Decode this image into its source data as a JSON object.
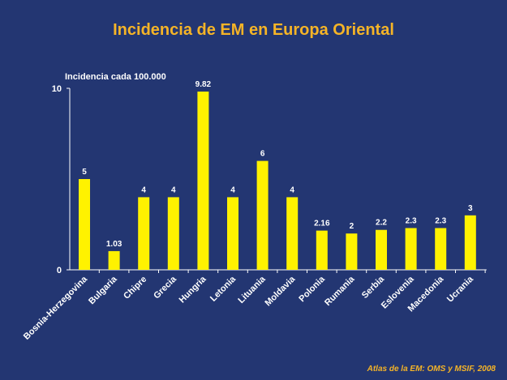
{
  "chart_data": {
    "type": "bar",
    "title": "Incidencia de EM en Europa Oriental",
    "ylabel": "Incidencia cada 100.000",
    "ylim": [
      0,
      10
    ],
    "yticks": [
      0,
      10
    ],
    "grid": false,
    "bar_color": "#FFF200",
    "categories": [
      "Bosnia-Herzegovina",
      "Bulgaria",
      "Chipre",
      "Grecia",
      "Hungria",
      "Letonia",
      "Lituania",
      "Moldavia",
      "Polonia",
      "Rumania",
      "Serbia",
      "Eslovenia",
      "Macedonia",
      "Ucrania"
    ],
    "values": [
      5,
      1.03,
      4,
      4,
      9.82,
      4,
      6,
      4,
      2.16,
      2,
      2.2,
      2.3,
      2.3,
      3
    ],
    "value_labels": [
      "5",
      "1.03",
      "4",
      "4",
      "9.82",
      "4",
      "6",
      "4",
      "2.16",
      "2",
      "2.2",
      "2.3",
      "2.3",
      "3"
    ]
  },
  "source": "Atlas de la EM: OMS y MSIF, 2008",
  "colors": {
    "background": "#233672",
    "title": "#F5B427",
    "text": "#FFFFFF",
    "bar": "#FFF200"
  }
}
